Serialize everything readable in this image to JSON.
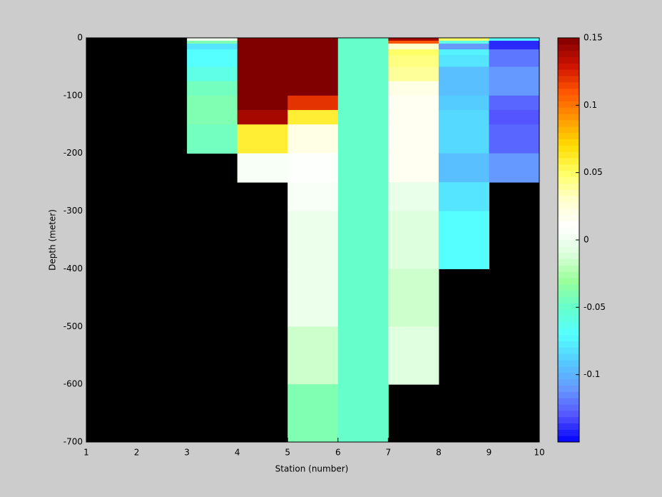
{
  "chart_data": {
    "type": "heatmap",
    "xlabel": "Station (number)",
    "ylabel": "Depth (meter)",
    "x": [
      1,
      2,
      3,
      4,
      5,
      6,
      7,
      8,
      9,
      10
    ],
    "y": [
      0,
      -5,
      -10,
      -20,
      -30,
      -50,
      -75,
      -100,
      -125,
      -150,
      -200,
      -250,
      -300,
      -400,
      -500,
      -600,
      -700
    ],
    "values": [
      [
        null,
        null,
        0.0,
        0.15,
        0.15,
        -0.05,
        0.14,
        0.05,
        -0.07
      ],
      [
        null,
        null,
        -0.04,
        0.15,
        0.15,
        -0.05,
        0.11,
        -0.06,
        -0.14
      ],
      [
        null,
        null,
        -0.08,
        0.15,
        0.15,
        -0.05,
        0.03,
        -0.11,
        -0.14
      ],
      [
        null,
        null,
        -0.07,
        0.15,
        0.15,
        -0.05,
        0.05,
        -0.075,
        -0.12
      ],
      [
        null,
        null,
        -0.07,
        0.15,
        0.15,
        -0.05,
        0.045,
        -0.08,
        -0.12
      ],
      [
        null,
        null,
        -0.06,
        0.15,
        0.15,
        -0.05,
        0.04,
        -0.095,
        -0.11
      ],
      [
        null,
        null,
        -0.045,
        0.15,
        0.15,
        -0.05,
        0.02,
        -0.095,
        -0.11
      ],
      [
        null,
        null,
        -0.04,
        0.15,
        0.12,
        -0.05,
        0.015,
        -0.09,
        -0.125
      ],
      [
        null,
        null,
        -0.04,
        0.14,
        0.06,
        -0.05,
        0.015,
        -0.085,
        -0.13
      ],
      [
        null,
        null,
        -0.045,
        0.06,
        0.02,
        -0.05,
        0.015,
        -0.085,
        -0.125
      ],
      [
        null,
        null,
        null,
        0.005,
        0.008,
        -0.05,
        0.015,
        -0.095,
        -0.11
      ],
      [
        null,
        null,
        null,
        null,
        0.005,
        -0.05,
        -0.003,
        -0.08,
        null
      ],
      [
        null,
        null,
        null,
        null,
        -0.002,
        -0.05,
        -0.01,
        -0.07,
        null
      ],
      [
        null,
        null,
        null,
        null,
        -0.002,
        -0.05,
        -0.015,
        null,
        null
      ],
      [
        null,
        null,
        null,
        null,
        -0.015,
        -0.05,
        -0.008,
        null,
        null
      ],
      [
        null,
        null,
        null,
        null,
        -0.04,
        -0.05,
        null,
        null,
        null
      ]
    ],
    "xlim": [
      1,
      10
    ],
    "xticks": [
      1,
      2,
      3,
      4,
      5,
      6,
      7,
      8,
      9,
      10
    ],
    "ylim": [
      -700,
      0
    ],
    "yticks": [
      0,
      -100,
      -200,
      -300,
      -400,
      -500,
      -600,
      -700
    ],
    "clim": [
      -0.15,
      0.15
    ],
    "cticks": [
      -0.1,
      -0.05,
      0,
      0.05,
      0.1,
      0.15
    ],
    "colormap": [
      "#0000ff",
      "#5555ff",
      "#6699ff",
      "#55ccff",
      "#55ffff",
      "#66ffcc",
      "#99ff99",
      "#ddffdd",
      "#ffffff",
      "#ffffcc",
      "#ffff66",
      "#ffdd00",
      "#ff9900",
      "#ff5500",
      "#cc1100",
      "#800000"
    ],
    "nan_color": "#000000"
  }
}
